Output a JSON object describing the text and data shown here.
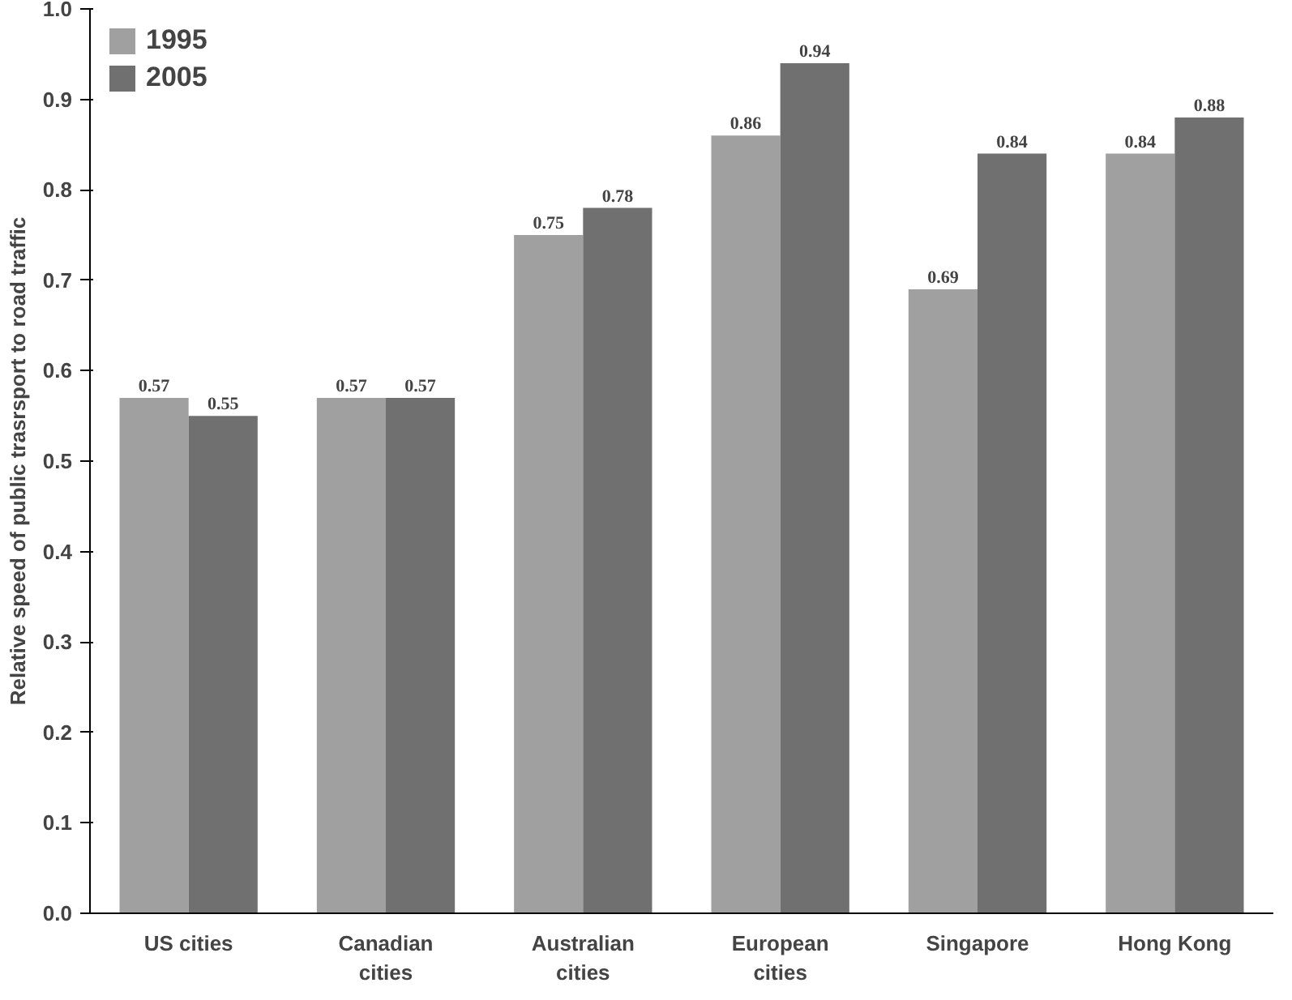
{
  "chart_data": {
    "type": "bar",
    "ylabel": "Relative speed of public trasrsport to road traffic",
    "categories": [
      "US cities",
      "Canadian\ncities",
      "Australian\ncities",
      "European\ncities",
      "Singapore",
      "Hong Kong"
    ],
    "series": [
      {
        "name": "1995",
        "color": "#a0a0a0",
        "values": [
          0.57,
          0.57,
          0.75,
          0.86,
          0.69,
          0.84
        ]
      },
      {
        "name": "2005",
        "color": "#707070",
        "values": [
          0.55,
          0.57,
          0.78,
          0.94,
          0.84,
          0.88
        ]
      }
    ],
    "ylim": [
      0,
      1.0
    ],
    "yticks": [
      {
        "value": 0,
        "label": "0.0"
      },
      {
        "value": 0.1,
        "label": "0.1"
      },
      {
        "value": 0.2,
        "label": "0.2"
      },
      {
        "value": 0.3,
        "label": "0.3"
      },
      {
        "value": 0.4,
        "label": "0.4"
      },
      {
        "value": 0.5,
        "label": "0.5"
      },
      {
        "value": 0.6,
        "label": "0.6"
      },
      {
        "value": 0.7,
        "label": "0.7"
      },
      {
        "value": 0.8,
        "label": "0.8"
      },
      {
        "value": 0.9,
        "label": "0.9"
      },
      {
        "value": 1.0,
        "label": "1.0"
      }
    ],
    "data_labels": true,
    "grid": false,
    "legend": "top left"
  }
}
